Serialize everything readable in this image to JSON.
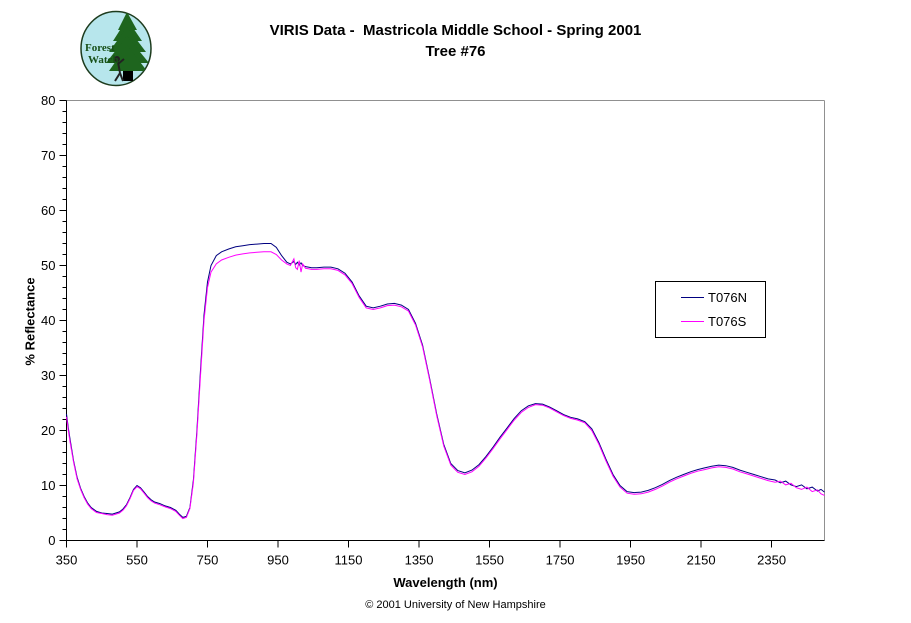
{
  "page": {
    "title_line1": "VIRIS Data -  Mastricola Middle School - Spring 2001",
    "title_line2": "Tree #76",
    "footer": "© 2001 University of New Hampshire"
  },
  "logo": {
    "text_line1": "Forest",
    "text_line2": "Watch",
    "bg_color": "#b7e6ec",
    "tree_color": "#1e651e",
    "text_color": "#175017"
  },
  "axes": {
    "x_label": "Wavelength (nm)",
    "y_label": "% Reflectance"
  },
  "legend": {
    "items": [
      {
        "label": "T076N",
        "color": "#000080"
      },
      {
        "label": "T076S",
        "color": "#FF00FF"
      }
    ]
  },
  "colors": {
    "series_north": "#000080",
    "series_south": "#FF00FF",
    "axis": "#000000",
    "plot_border_gray": "#909090"
  },
  "chart_data": {
    "type": "line",
    "title": "VIRIS Data - Mastricola Middle School - Spring 2001, Tree #76",
    "xlabel": "Wavelength (nm)",
    "ylabel": "% Reflectance",
    "xlim": [
      350,
      2500
    ],
    "ylim": [
      0,
      80
    ],
    "x_ticks": [
      350,
      550,
      750,
      950,
      1150,
      1350,
      1550,
      1750,
      1950,
      2150,
      2350
    ],
    "y_ticks": [
      0,
      10,
      20,
      30,
      40,
      50,
      60,
      70,
      80
    ],
    "y_minor_step": 2,
    "grid": false,
    "legend_position": "right-middle",
    "x": [
      350,
      355,
      360,
      370,
      380,
      390,
      400,
      410,
      420,
      435,
      450,
      465,
      480,
      490,
      500,
      510,
      520,
      530,
      540,
      550,
      560,
      570,
      580,
      590,
      600,
      615,
      630,
      645,
      660,
      670,
      680,
      690,
      700,
      710,
      720,
      730,
      740,
      750,
      760,
      775,
      790,
      810,
      830,
      850,
      870,
      890,
      910,
      930,
      945,
      960,
      975,
      985,
      995,
      1000,
      1005,
      1010,
      1015,
      1020,
      1028,
      1036,
      1045,
      1060,
      1080,
      1100,
      1120,
      1140,
      1160,
      1180,
      1200,
      1220,
      1240,
      1260,
      1280,
      1300,
      1320,
      1340,
      1360,
      1380,
      1400,
      1420,
      1440,
      1460,
      1480,
      1500,
      1520,
      1540,
      1560,
      1580,
      1600,
      1620,
      1640,
      1660,
      1680,
      1700,
      1720,
      1740,
      1760,
      1780,
      1800,
      1820,
      1840,
      1860,
      1880,
      1900,
      1920,
      1940,
      1960,
      1980,
      2000,
      2020,
      2040,
      2060,
      2080,
      2100,
      2120,
      2140,
      2160,
      2180,
      2200,
      2220,
      2240,
      2260,
      2280,
      2300,
      2320,
      2340,
      2360,
      2375,
      2390,
      2405,
      2420,
      2435,
      2450,
      2465,
      2480,
      2490,
      2500
    ],
    "series": [
      {
        "name": "T076N",
        "color": "#000080",
        "values": [
          23.0,
          20.5,
          18.5,
          14.5,
          11.5,
          9.5,
          8.0,
          6.8,
          6.0,
          5.3,
          5.0,
          4.9,
          4.8,
          5.0,
          5.2,
          5.7,
          6.5,
          7.8,
          9.3,
          10.0,
          9.6,
          8.8,
          8.0,
          7.4,
          7.0,
          6.7,
          6.3,
          6.0,
          5.5,
          4.8,
          4.2,
          4.4,
          6.0,
          11.0,
          20.0,
          31.0,
          41.0,
          47.0,
          50.0,
          51.8,
          52.5,
          53.0,
          53.4,
          53.6,
          53.8,
          53.9,
          54.0,
          54.0,
          53.3,
          51.8,
          50.6,
          50.3,
          50.7,
          50.2,
          50.6,
          50.1,
          50.5,
          50.0,
          49.8,
          49.7,
          49.6,
          49.6,
          49.7,
          49.7,
          49.4,
          48.6,
          47.0,
          44.5,
          42.6,
          42.3,
          42.6,
          43.0,
          43.1,
          42.8,
          42.0,
          39.5,
          35.5,
          29.5,
          23.0,
          17.5,
          14.0,
          12.7,
          12.3,
          12.8,
          13.8,
          15.3,
          17.0,
          18.8,
          20.5,
          22.2,
          23.6,
          24.5,
          24.9,
          24.8,
          24.3,
          23.6,
          22.9,
          22.4,
          22.1,
          21.6,
          20.3,
          17.8,
          14.8,
          12.0,
          10.0,
          8.9,
          8.7,
          8.8,
          9.1,
          9.6,
          10.2,
          10.9,
          11.5,
          12.0,
          12.5,
          12.9,
          13.2,
          13.5,
          13.7,
          13.6,
          13.3,
          12.8,
          12.4,
          12.0,
          11.6,
          11.2,
          11.0,
          10.5,
          10.8,
          10.1,
          9.8,
          10.1,
          9.4,
          9.7,
          9.0,
          9.3,
          8.8
        ]
      },
      {
        "name": "T076S",
        "color": "#FF00FF",
        "values": [
          22.5,
          20.0,
          18.0,
          14.2,
          11.2,
          9.3,
          7.8,
          6.6,
          5.8,
          5.1,
          4.9,
          4.7,
          4.6,
          4.8,
          5.0,
          5.5,
          6.3,
          7.6,
          9.1,
          9.8,
          9.4,
          8.6,
          7.8,
          7.2,
          6.8,
          6.5,
          6.1,
          5.8,
          5.3,
          4.6,
          4.0,
          4.2,
          5.8,
          10.5,
          19.3,
          30.0,
          40.0,
          46.0,
          48.8,
          50.3,
          51.0,
          51.5,
          51.9,
          52.1,
          52.3,
          52.4,
          52.5,
          52.5,
          52.0,
          51.0,
          50.3,
          50.0,
          51.2,
          49.6,
          49.3,
          50.9,
          48.8,
          50.3,
          49.5,
          49.4,
          49.3,
          49.3,
          49.4,
          49.4,
          49.1,
          48.3,
          46.7,
          44.2,
          42.3,
          42.0,
          42.3,
          42.7,
          42.8,
          42.5,
          41.7,
          39.2,
          35.2,
          29.2,
          22.7,
          17.2,
          13.7,
          12.4,
          12.0,
          12.5,
          13.5,
          15.0,
          16.7,
          18.5,
          20.2,
          21.9,
          23.3,
          24.2,
          24.7,
          24.6,
          24.1,
          23.4,
          22.7,
          22.2,
          21.9,
          21.4,
          20.0,
          17.5,
          14.5,
          11.7,
          9.7,
          8.6,
          8.4,
          8.5,
          8.8,
          9.3,
          9.9,
          10.6,
          11.2,
          11.7,
          12.2,
          12.6,
          12.9,
          13.2,
          13.4,
          13.3,
          13.0,
          12.5,
          12.1,
          11.7,
          11.3,
          10.9,
          10.6,
          10.8,
          10.1,
          10.4,
          9.6,
          9.3,
          9.7,
          8.9,
          9.2,
          8.5,
          8.2
        ]
      }
    ]
  }
}
